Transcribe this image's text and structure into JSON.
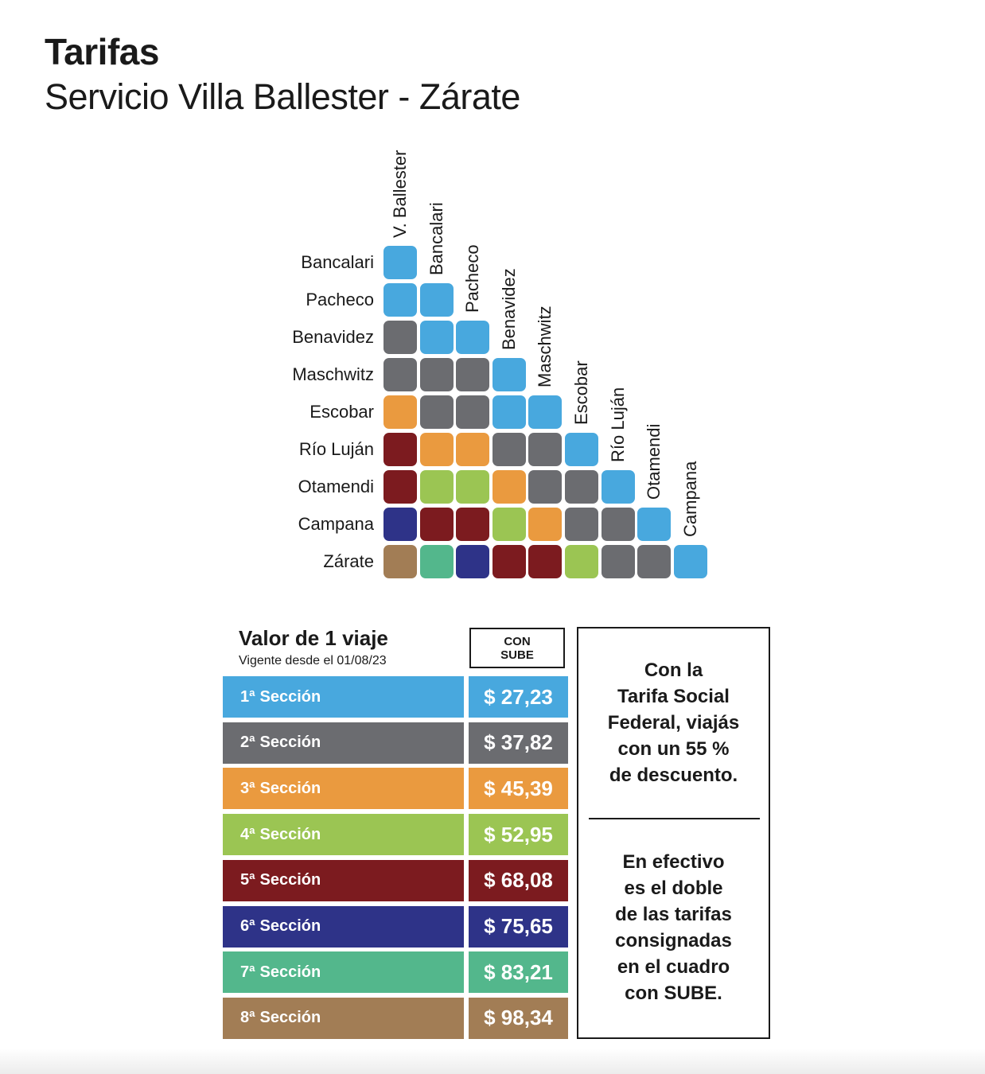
{
  "header": {
    "title": "Tarifas",
    "subtitle": "Servicio Villa Ballester - Zárate"
  },
  "matrix": {
    "columns": [
      "V. Ballester",
      "Bancalari",
      "Pacheco",
      "Benavidez",
      "Maschwitz",
      "Escobar",
      "Río Luján",
      "Otamendi",
      "Campana"
    ],
    "rows": [
      {
        "label": "Bancalari",
        "sections": [
          1
        ]
      },
      {
        "label": "Pacheco",
        "sections": [
          1,
          1
        ]
      },
      {
        "label": "Benavidez",
        "sections": [
          2,
          1,
          1
        ]
      },
      {
        "label": "Maschwitz",
        "sections": [
          2,
          2,
          2,
          1
        ]
      },
      {
        "label": "Escobar",
        "sections": [
          3,
          2,
          2,
          1,
          1
        ]
      },
      {
        "label": "Río Luján",
        "sections": [
          5,
          3,
          3,
          2,
          2,
          1
        ]
      },
      {
        "label": "Otamendi",
        "sections": [
          5,
          4,
          4,
          3,
          2,
          2,
          1
        ]
      },
      {
        "label": "Campana",
        "sections": [
          6,
          5,
          5,
          4,
          3,
          2,
          2,
          1
        ]
      },
      {
        "label": "Zárate",
        "sections": [
          8,
          7,
          6,
          5,
          5,
          4,
          2,
          2,
          1
        ]
      }
    ]
  },
  "section_colors": {
    "1": "#48a8de",
    "2": "#6b6c70",
    "3": "#ea9a3f",
    "4": "#9bc553",
    "5": "#7c1b1f",
    "6": "#2e3388",
    "7": "#53b78c",
    "8": "#a27d55"
  },
  "legend": {
    "title": "Valor de 1 viaje",
    "valid_from": "Vigente desde el 01/08/23",
    "column_header_line1": "CON",
    "column_header_line2": "SUBE",
    "sections": [
      {
        "ordinal": "1ª",
        "label": "Sección",
        "price": "$ 27,23",
        "color": "#48a8de"
      },
      {
        "ordinal": "2ª",
        "label": "Sección",
        "price": "$ 37,82",
        "color": "#6b6c70"
      },
      {
        "ordinal": "3ª",
        "label": "Sección",
        "price": "$ 45,39",
        "color": "#ea9a3f"
      },
      {
        "ordinal": "4ª",
        "label": "Sección",
        "price": "$ 52,95",
        "color": "#9bc553"
      },
      {
        "ordinal": "5ª",
        "label": "Sección",
        "price": "$ 68,08",
        "color": "#7c1b1f"
      },
      {
        "ordinal": "6ª",
        "label": "Sección",
        "price": "$ 75,65",
        "color": "#2e3388"
      },
      {
        "ordinal": "7ª",
        "label": "Sección",
        "price": "$ 83,21",
        "color": "#53b78c"
      },
      {
        "ordinal": "8ª",
        "label": "Sección",
        "price": "$ 98,34",
        "color": "#a27d55"
      }
    ]
  },
  "info": {
    "social_tariff": [
      "Con la",
      "Tarifa Social",
      "Federal, viajás",
      "con un 55 %",
      "de descuento."
    ],
    "cash_note": [
      "En efectivo",
      "es el doble",
      "de las tarifas",
      "consignadas",
      "en el cuadro",
      "con SUBE."
    ]
  }
}
